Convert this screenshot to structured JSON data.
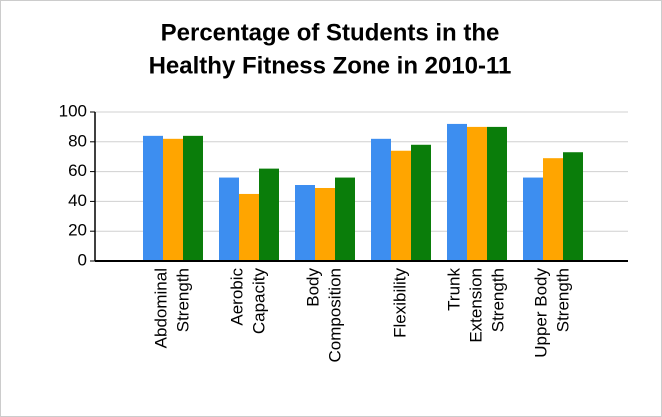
{
  "chart_data": {
    "type": "bar",
    "title": [
      "Percentage of Students in the",
      "Healthy Fitness Zone in 2010-11"
    ],
    "categories": [
      [
        "Abdominal",
        "Strength"
      ],
      [
        "Aerobic",
        "Capacity"
      ],
      [
        "Body",
        "Composition"
      ],
      [
        "Flexibility"
      ],
      [
        "Trunk",
        "Extension",
        "Strength"
      ],
      [
        "Upper Body",
        "Strength"
      ]
    ],
    "series": [
      {
        "color": "#3d8ef0",
        "values": [
          84,
          56,
          51,
          82,
          92,
          56
        ]
      },
      {
        "color": "#ffa500",
        "values": [
          82,
          45,
          49,
          74,
          90,
          69
        ]
      },
      {
        "color": "#0a7d0a",
        "values": [
          84,
          62,
          56,
          78,
          90,
          73
        ]
      }
    ],
    "ylim": [
      0,
      100
    ],
    "yticks": [
      0,
      20,
      40,
      60,
      80,
      100
    ],
    "grid": true
  }
}
